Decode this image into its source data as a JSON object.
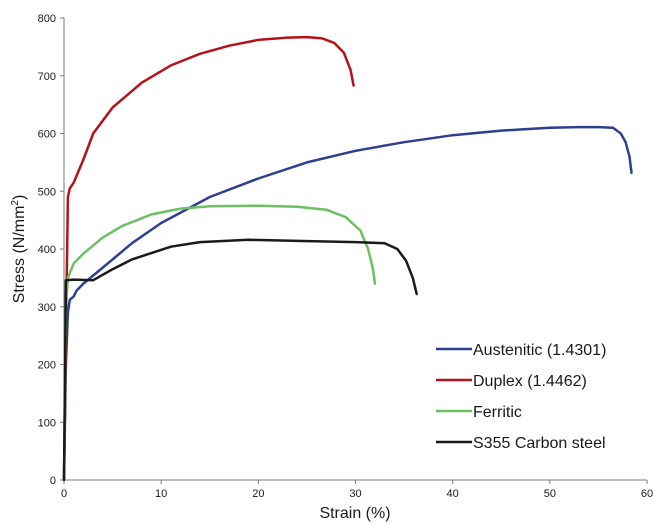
{
  "chart_data": {
    "type": "line",
    "xlabel": "Strain (%)",
    "ylabel_main": "Stress (N/mm",
    "ylabel_sup": "2",
    "ylabel_close": ")",
    "xlim": [
      0,
      60
    ],
    "ylim": [
      0,
      800
    ],
    "x_ticks": [
      "0",
      "10",
      "20",
      "30",
      "40",
      "50",
      "60"
    ],
    "y_ticks": [
      "0",
      "100",
      "200",
      "300",
      "400",
      "500",
      "600",
      "700",
      "800"
    ],
    "grid": false,
    "legend_position": "bottom-right",
    "series": [
      {
        "name": "Austenitic (1.4301)",
        "color": "#2f3f8f",
        "points": [
          [
            0,
            0
          ],
          [
            0.2,
            200
          ],
          [
            0.4,
            290
          ],
          [
            0.6,
            312
          ],
          [
            1.0,
            318
          ],
          [
            1.3,
            328
          ],
          [
            2,
            340
          ],
          [
            4,
            368
          ],
          [
            7,
            410
          ],
          [
            10,
            445
          ],
          [
            15,
            490
          ],
          [
            20,
            522
          ],
          [
            25,
            550
          ],
          [
            30,
            570
          ],
          [
            35,
            585
          ],
          [
            40,
            597
          ],
          [
            45,
            605
          ],
          [
            50,
            610
          ],
          [
            53,
            611
          ],
          [
            55,
            611
          ],
          [
            56.5,
            610
          ],
          [
            57.3,
            600
          ],
          [
            57.8,
            585
          ],
          [
            58.2,
            560
          ],
          [
            58.4,
            532
          ]
        ]
      },
      {
        "name": "Duplex (1.4462)",
        "color": "#b5121b",
        "points": [
          [
            0,
            0
          ],
          [
            0.2,
            250
          ],
          [
            0.4,
            490
          ],
          [
            0.6,
            505
          ],
          [
            1,
            515
          ],
          [
            2,
            555
          ],
          [
            3,
            600
          ],
          [
            5,
            645
          ],
          [
            8,
            688
          ],
          [
            11,
            718
          ],
          [
            14,
            738
          ],
          [
            17,
            752
          ],
          [
            20,
            762
          ],
          [
            23,
            766
          ],
          [
            25,
            767
          ],
          [
            26.5,
            765
          ],
          [
            27.8,
            757
          ],
          [
            28.8,
            740
          ],
          [
            29.5,
            710
          ],
          [
            29.8,
            683
          ]
        ]
      },
      {
        "name": "Ferritic",
        "color": "#6dbf63",
        "points": [
          [
            0,
            0
          ],
          [
            0.2,
            300
          ],
          [
            0.4,
            350
          ],
          [
            1,
            375
          ],
          [
            2,
            392
          ],
          [
            4,
            420
          ],
          [
            6,
            440
          ],
          [
            9,
            460
          ],
          [
            12,
            470
          ],
          [
            15,
            474
          ],
          [
            20,
            475
          ],
          [
            24,
            473
          ],
          [
            27,
            468
          ],
          [
            29,
            455
          ],
          [
            30.5,
            432
          ],
          [
            31.3,
            400
          ],
          [
            31.8,
            365
          ],
          [
            32,
            340
          ]
        ]
      },
      {
        "name": "S355 Carbon steel",
        "color": "#1a1a1a",
        "points": [
          [
            0,
            0
          ],
          [
            0.2,
            346
          ],
          [
            1,
            347
          ],
          [
            3,
            346
          ],
          [
            5,
            365
          ],
          [
            7,
            382
          ],
          [
            11,
            404
          ],
          [
            14,
            412
          ],
          [
            19,
            416
          ],
          [
            24,
            414
          ],
          [
            30,
            412
          ],
          [
            33,
            410
          ],
          [
            34.3,
            400
          ],
          [
            35.2,
            380
          ],
          [
            35.9,
            350
          ],
          [
            36.3,
            322
          ]
        ]
      }
    ]
  }
}
